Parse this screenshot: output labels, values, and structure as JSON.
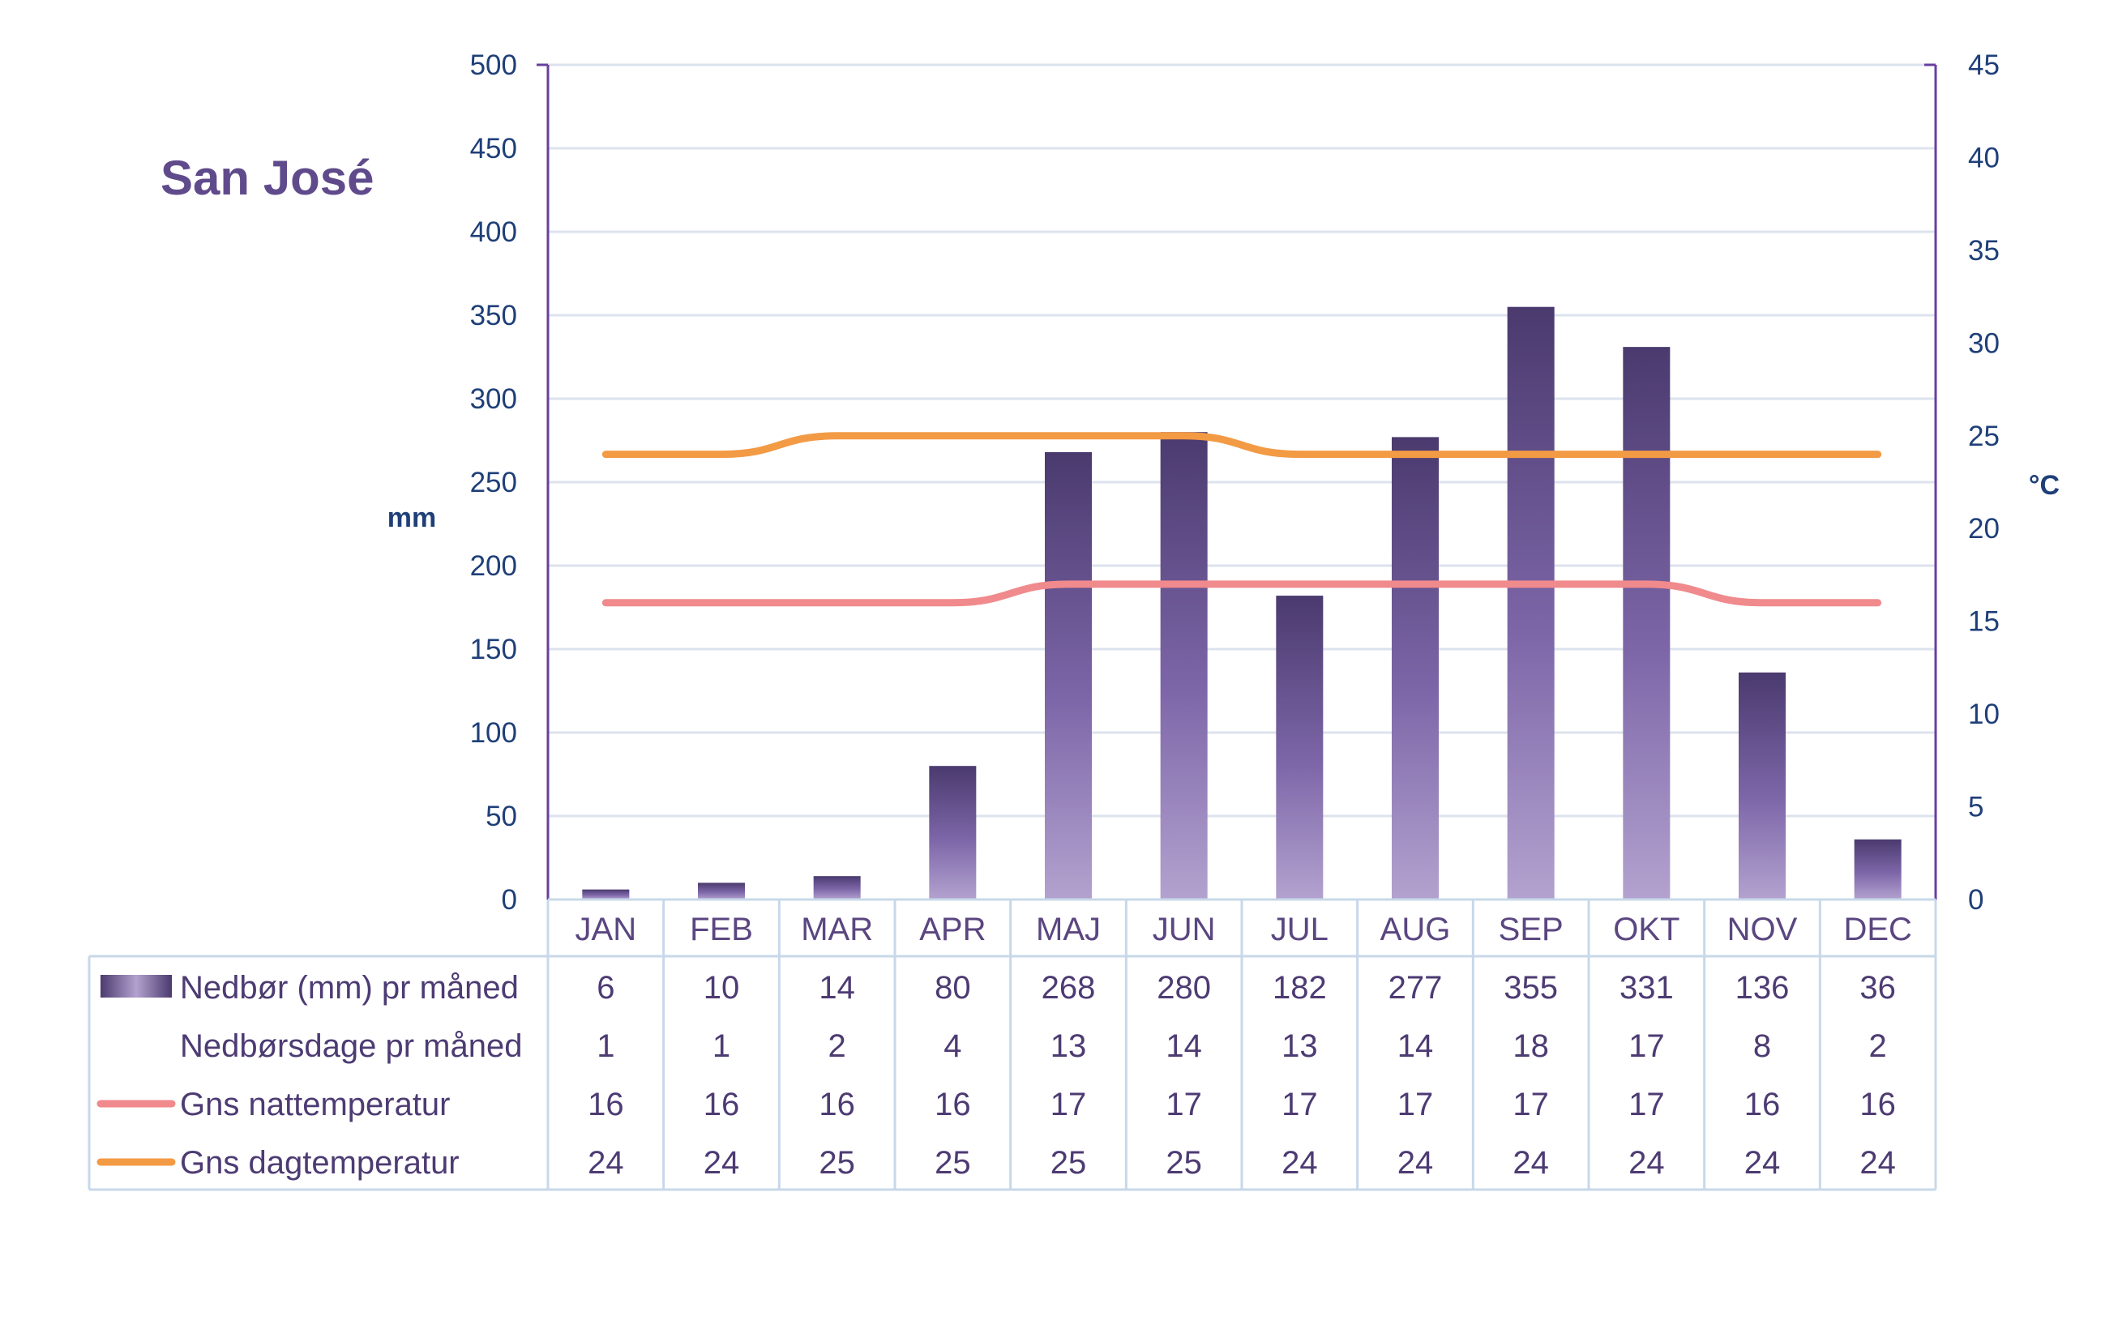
{
  "chart_data": {
    "type": "bar",
    "title": "San José",
    "y_left_label": "mm",
    "y_right_label": "°C",
    "ylim_left": [
      0,
      500
    ],
    "ylim_right": [
      0,
      45
    ],
    "y_left_ticks": [
      "0",
      "50",
      "100",
      "150",
      "200",
      "250",
      "300",
      "350",
      "400",
      "450",
      "500"
    ],
    "y_right_ticks": [
      "0",
      "5",
      "10",
      "15",
      "20",
      "25",
      "30",
      "35",
      "40",
      "45"
    ],
    "grid": true,
    "categories": [
      "JAN",
      "FEB",
      "MAR",
      "APR",
      "MAJ",
      "JUN",
      "JUL",
      "AUG",
      "SEP",
      "OKT",
      "NOV",
      "DEC"
    ],
    "series": [
      {
        "name": "Nedbør (mm) pr måned",
        "kind": "bar",
        "axis": "left",
        "color": "#5b4a86",
        "values": [
          6,
          10,
          14,
          80,
          268,
          280,
          182,
          277,
          355,
          331,
          136,
          36
        ]
      },
      {
        "name": "Nedbørsdage pr måned",
        "kind": "table",
        "values": [
          1,
          1,
          2,
          4,
          13,
          14,
          13,
          14,
          18,
          17,
          8,
          2
        ]
      },
      {
        "name": "Gns nattemperatur",
        "kind": "line",
        "axis": "right",
        "color": "#f08a8c",
        "values": [
          16,
          16,
          16,
          16,
          17,
          17,
          17,
          17,
          17,
          17,
          16,
          16
        ]
      },
      {
        "name": "Gns dagtemperatur",
        "kind": "line",
        "axis": "right",
        "color": "#f39a45",
        "values": [
          24,
          24,
          25,
          25,
          25,
          25,
          24,
          24,
          24,
          24,
          24,
          24
        ]
      }
    ],
    "colors": {
      "axis": "#6a3fa0",
      "grid": "#dce3ee",
      "table_border": "#c8d8ea",
      "text": "#1f3f78"
    }
  }
}
